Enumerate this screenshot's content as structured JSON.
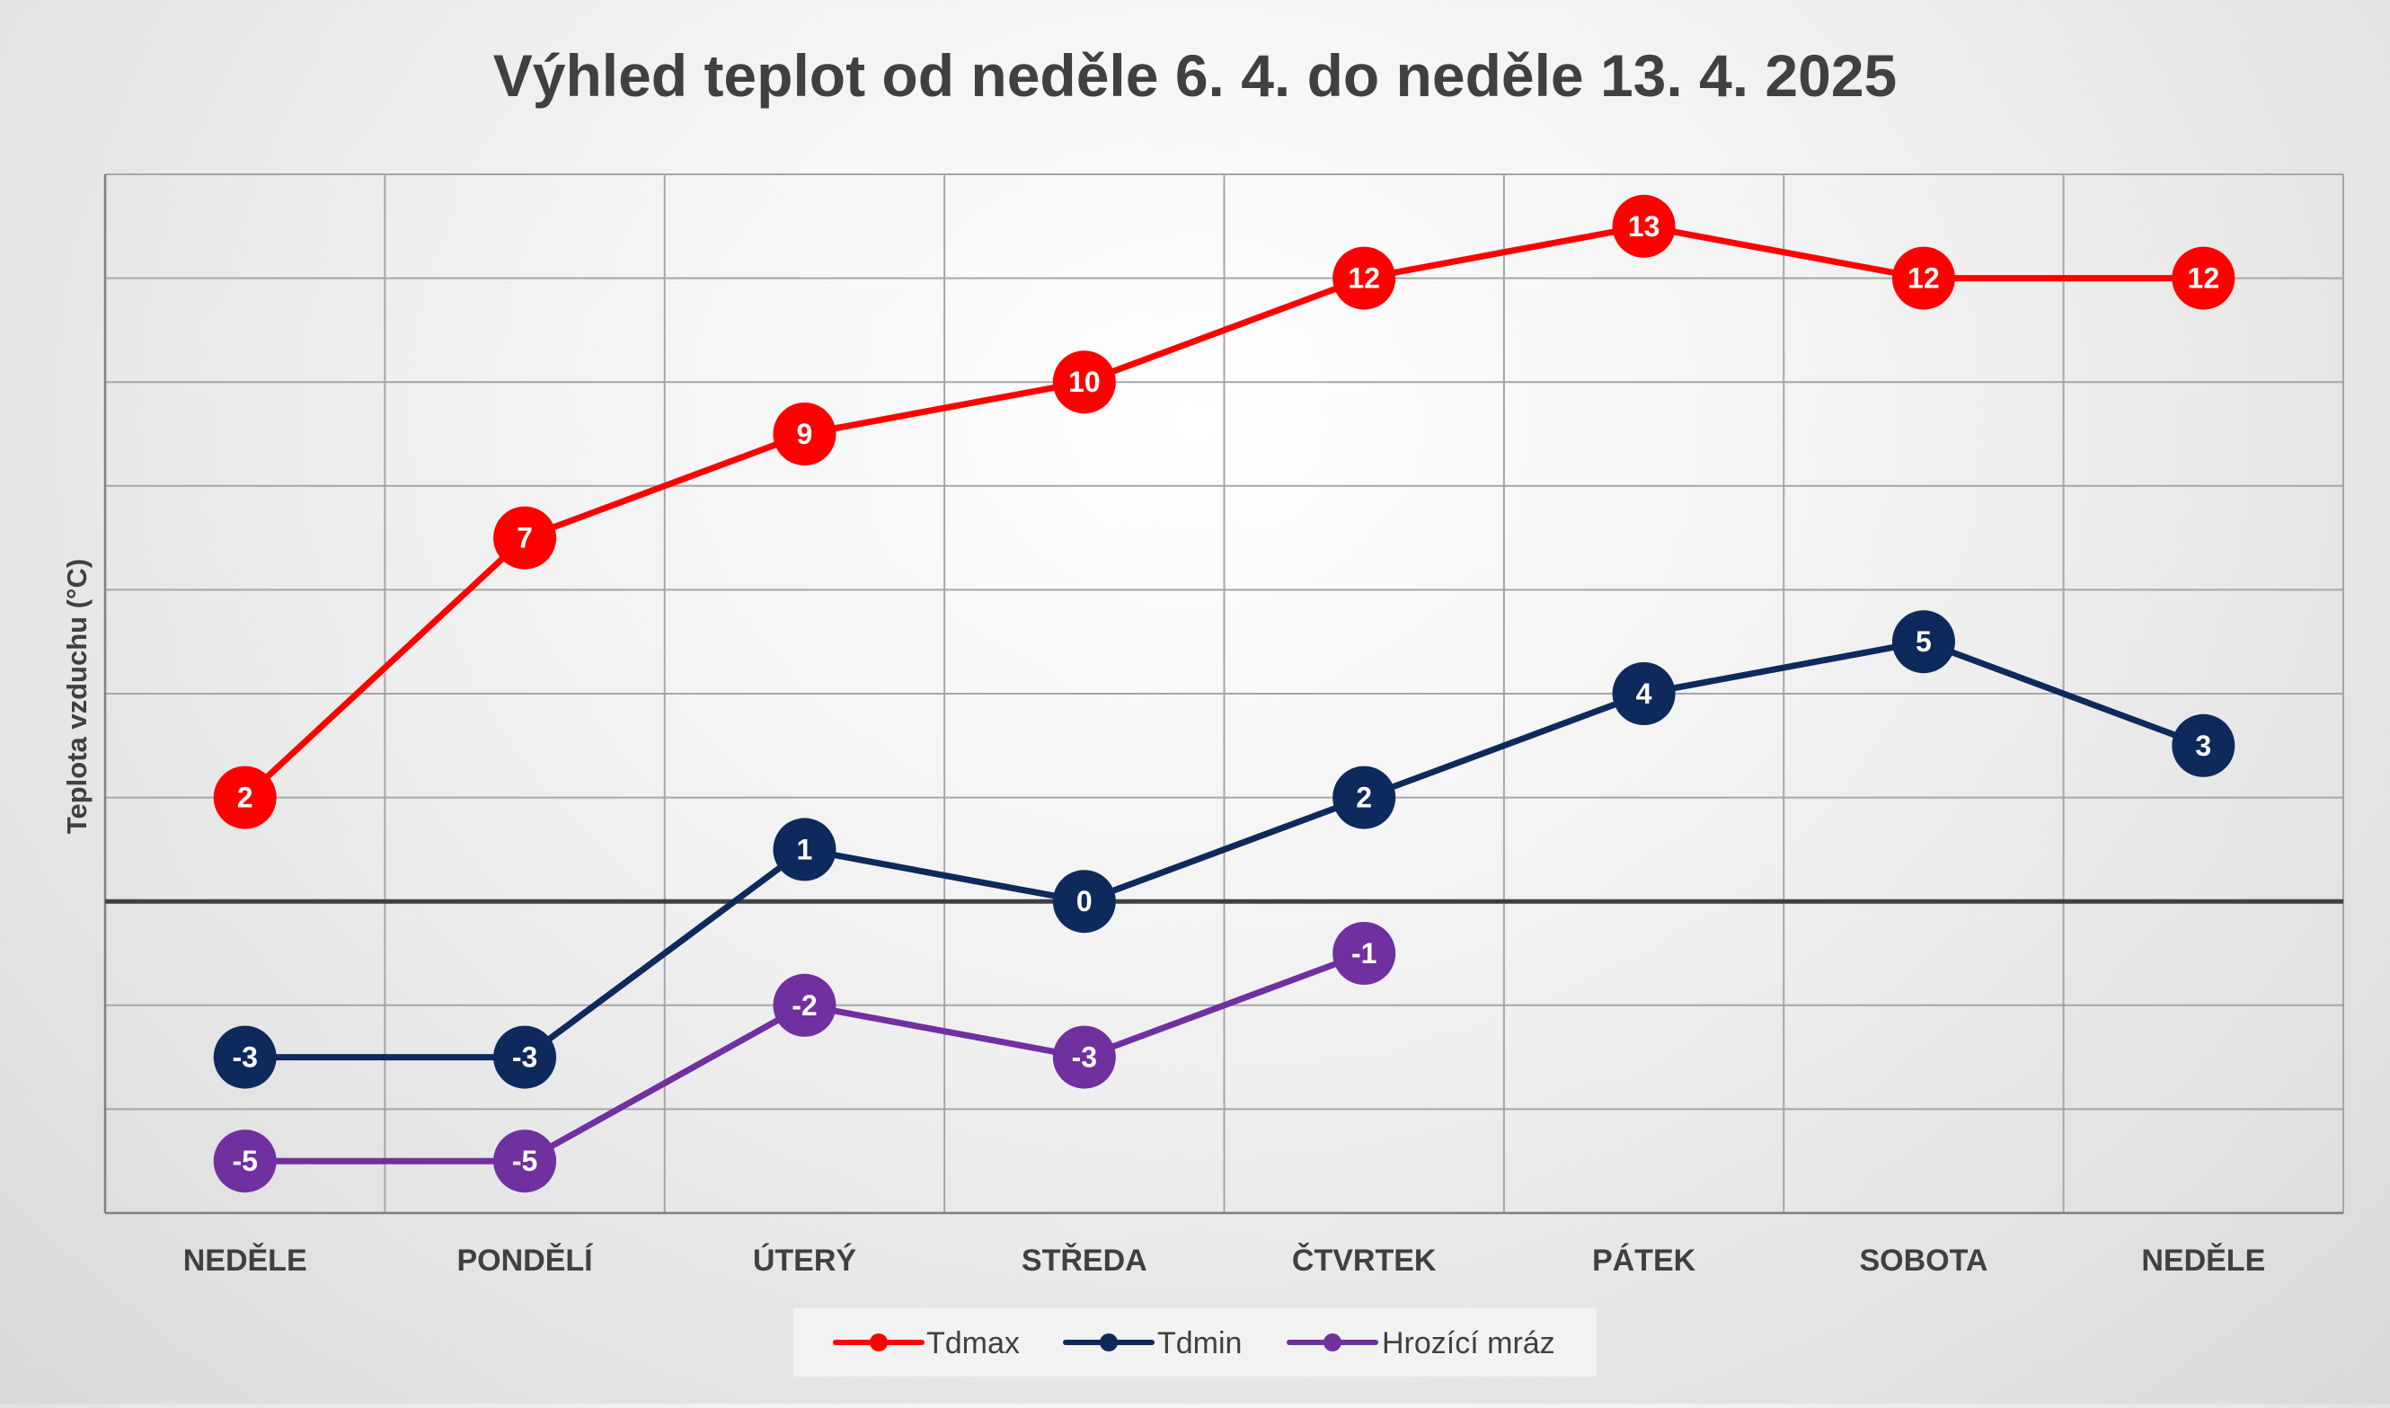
{
  "chart_data": {
    "type": "line",
    "title": "Výhled teplot od neděle 6. 4. do neděle 13. 4. 2025",
    "xlabel": "",
    "ylabel": "Teplota vzduchu (°C)",
    "categories": [
      "NEDĚLE",
      "PONDĚLÍ",
      "ÚTERÝ",
      "STŘEDA",
      "ČTVRTEK",
      "PÁTEK",
      "SOBOTA",
      "NEDĚLE"
    ],
    "ylim": [
      -6,
      14
    ],
    "grid": true,
    "zero_line": true,
    "legend_position": "bottom",
    "series": [
      {
        "name": "Tdmax",
        "color": "#ff0000",
        "values": [
          2,
          7,
          9,
          10,
          12,
          13,
          12,
          12
        ]
      },
      {
        "name": "Tdmin",
        "color": "#0e2a5c",
        "values": [
          -3,
          -3,
          1,
          0,
          2,
          4,
          5,
          3
        ]
      },
      {
        "name": "Hrozící mráz",
        "color": "#7030a0",
        "values": [
          -5,
          -5,
          -2,
          -3,
          -1,
          null,
          null,
          null
        ]
      }
    ]
  }
}
